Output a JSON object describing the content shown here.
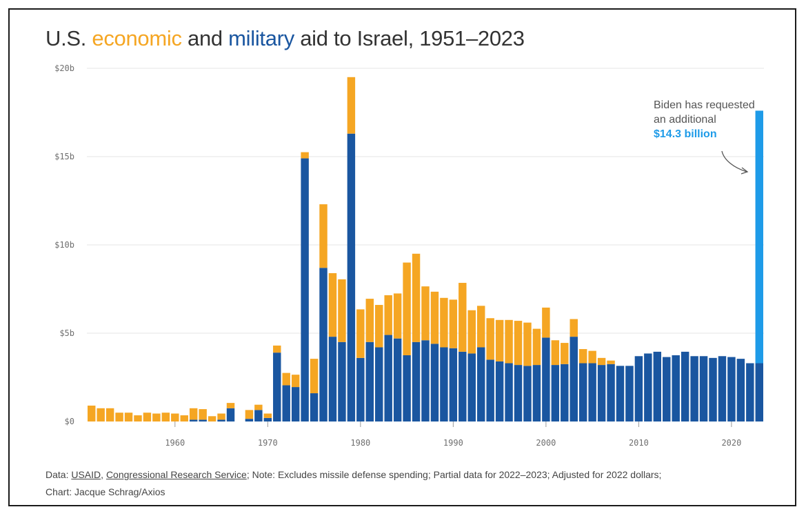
{
  "title": {
    "prefix": "U.S. ",
    "economic": "economic",
    "mid": " and ",
    "military": "military",
    "suffix": " aid to Israel, 1951–2023"
  },
  "annotation": {
    "line1": "Biden has requested",
    "line2": "an additional",
    "amount": "$14.3 billion"
  },
  "footer": {
    "data_label": "Data: ",
    "source1": "USAID",
    "sep": ", ",
    "source2": "Congressional Research Service",
    "note": "; Note: Excludes missile defense spending; Partial data for 2022–2023; Adjusted for 2022 dollars;",
    "credit": "Chart: Jacque Schrag/Axios"
  },
  "colors": {
    "economic": "#f5a623",
    "military": "#1a56a0",
    "request": "#1e9be8"
  },
  "chart_data": {
    "type": "bar",
    "stacked": true,
    "title": "U.S. economic and military aid to Israel, 1951–2023",
    "ylim": [
      0,
      20
    ],
    "yticks": [
      "$0",
      "$5b",
      "$10b",
      "$15b",
      "$20b"
    ],
    "ytick_values": [
      0,
      5,
      10,
      15,
      20
    ],
    "xticks": [
      "1960",
      "1970",
      "1980",
      "1990",
      "2000",
      "2010",
      "2020"
    ],
    "xtick_values": [
      1960,
      1970,
      1980,
      1990,
      2000,
      2010,
      2020
    ],
    "xlim": [
      1951,
      2023
    ],
    "grid": true,
    "legend": "in title",
    "years": [
      1951,
      1952,
      1953,
      1954,
      1955,
      1956,
      1957,
      1958,
      1959,
      1960,
      1961,
      1962,
      1963,
      1964,
      1965,
      1966,
      1967,
      1968,
      1969,
      1970,
      1971,
      1972,
      1973,
      1974,
      1975,
      1976,
      1977,
      1978,
      1979,
      1980,
      1981,
      1982,
      1983,
      1984,
      1985,
      1986,
      1987,
      1988,
      1989,
      1990,
      1991,
      1992,
      1993,
      1994,
      1995,
      1996,
      1997,
      1998,
      1999,
      2000,
      2001,
      2002,
      2003,
      2004,
      2005,
      2006,
      2007,
      2008,
      2009,
      2010,
      2011,
      2012,
      2013,
      2014,
      2015,
      2016,
      2017,
      2018,
      2019,
      2020,
      2021,
      2022,
      2023
    ],
    "series": [
      {
        "name": "military",
        "values": [
          0,
          0,
          0,
          0,
          0,
          0,
          0,
          0,
          0,
          0,
          0,
          0.1,
          0.1,
          0,
          0.1,
          0.75,
          0,
          0.15,
          0.65,
          0.2,
          3.9,
          2.05,
          1.95,
          14.9,
          1.6,
          8.7,
          4.8,
          4.5,
          16.3,
          3.6,
          4.5,
          4.2,
          4.9,
          4.7,
          3.75,
          4.5,
          4.6,
          4.4,
          4.2,
          4.15,
          3.95,
          3.85,
          4.2,
          3.5,
          3.4,
          3.3,
          3.2,
          3.15,
          3.2,
          4.75,
          3.2,
          3.25,
          4.8,
          3.3,
          3.3,
          3.2,
          3.25,
          3.15,
          3.15,
          3.7,
          3.85,
          3.95,
          3.65,
          3.75,
          3.95,
          3.7,
          3.7,
          3.6,
          3.7,
          3.65,
          3.55,
          3.3,
          3.3
        ]
      },
      {
        "name": "economic",
        "values": [
          0.9,
          0.75,
          0.75,
          0.5,
          0.5,
          0.35,
          0.5,
          0.45,
          0.5,
          0.45,
          0.35,
          0.65,
          0.6,
          0.3,
          0.35,
          0.3,
          0,
          0.5,
          0.3,
          0.25,
          0.4,
          0.7,
          0.7,
          0.35,
          1.95,
          3.6,
          3.6,
          3.55,
          3.2,
          2.75,
          2.45,
          2.4,
          2.25,
          2.55,
          5.25,
          5.0,
          3.05,
          2.95,
          2.8,
          2.75,
          3.9,
          2.45,
          2.35,
          2.35,
          2.35,
          2.45,
          2.5,
          2.45,
          2.05,
          1.7,
          1.4,
          1.2,
          1.0,
          0.8,
          0.7,
          0.4,
          0.2,
          0,
          0,
          0,
          0,
          0,
          0,
          0,
          0,
          0,
          0,
          0,
          0,
          0,
          0,
          0,
          0
        ]
      },
      {
        "name": "requested",
        "values": [
          0,
          0,
          0,
          0,
          0,
          0,
          0,
          0,
          0,
          0,
          0,
          0,
          0,
          0,
          0,
          0,
          0,
          0,
          0,
          0,
          0,
          0,
          0,
          0,
          0,
          0,
          0,
          0,
          0,
          0,
          0,
          0,
          0,
          0,
          0,
          0,
          0,
          0,
          0,
          0,
          0,
          0,
          0,
          0,
          0,
          0,
          0,
          0,
          0,
          0,
          0,
          0,
          0,
          0,
          0,
          0,
          0,
          0,
          0,
          0,
          0,
          0,
          0,
          0,
          0,
          0,
          0,
          0,
          0,
          0,
          0,
          0,
          14.3
        ]
      }
    ]
  }
}
